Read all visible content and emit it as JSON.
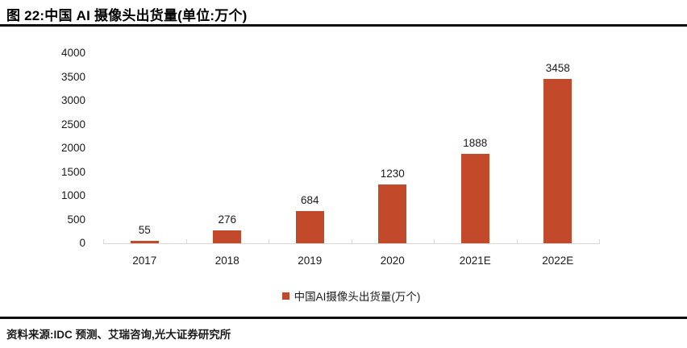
{
  "header": {
    "title": "图 22:中国 AI 摄像头出货量(单位:万个)"
  },
  "legend": {
    "label": "中国AI摄像头出货量(万个)",
    "marker_color": "#C3492B"
  },
  "footer": {
    "source": "资料来源:IDC 预测、艾瑞咨询,光大证券研究所"
  },
  "colors": {
    "bar": "#C3492B",
    "axis": "#D9D9D9",
    "text": "#1A1A1A",
    "rule": "#0A0A0A"
  },
  "chart_data": {
    "type": "bar",
    "title": "图 22:中国 AI 摄像头出货量(单位:万个)",
    "categories": [
      "2017",
      "2018",
      "2019",
      "2020",
      "2021E",
      "2022E"
    ],
    "values": [
      55,
      276,
      684,
      1230,
      1888,
      3458
    ],
    "xlabel": "",
    "ylabel": "",
    "ylim": [
      0,
      4000
    ],
    "yticks": [
      0,
      500,
      1000,
      1500,
      2000,
      2500,
      3000,
      3500,
      4000
    ],
    "grid": false,
    "data_labels": true,
    "bar_color": "#C3492B",
    "legend_entries": [
      "中国AI摄像头出货量(万个)"
    ],
    "legend_position": "bottom"
  }
}
